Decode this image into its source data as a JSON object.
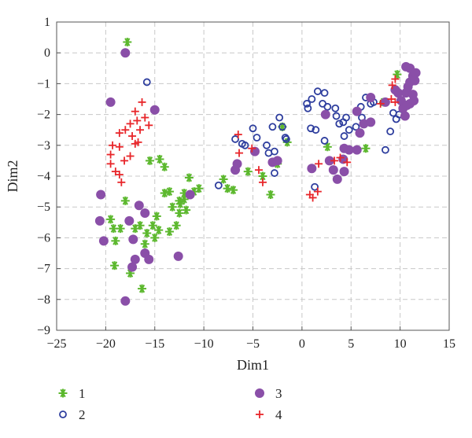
{
  "chart_data": {
    "type": "scatter",
    "title": "",
    "xlabel": "Dim1",
    "ylabel": "Dim2",
    "xlim": [
      -25,
      15
    ],
    "ylim": [
      -9,
      1
    ],
    "xticks": [
      -25,
      -20,
      -15,
      -10,
      -5,
      0,
      5,
      10,
      15
    ],
    "yticks": [
      -9,
      -8,
      -7,
      -6,
      -5,
      -4,
      -3,
      -2,
      -1,
      0,
      1
    ],
    "xtick_labels": [
      "−25",
      "−20",
      "−15",
      "−10",
      "−5",
      "0",
      "5",
      "10",
      "15"
    ],
    "ytick_labels": [
      "−9",
      "−8",
      "−7",
      "−6",
      "−5",
      "−4",
      "−3",
      "−2",
      "−1",
      "0",
      "1"
    ],
    "grid": true,
    "legend_position": "below",
    "series": [
      {
        "name": "1",
        "marker": "asterisk",
        "color": "#5cb82e",
        "points": [
          [
            -17.8,
            0.35
          ],
          [
            -15.5,
            -3.5
          ],
          [
            -14.5,
            -3.45
          ],
          [
            -14.0,
            -3.7
          ],
          [
            -13.5,
            -4.5
          ],
          [
            -12.5,
            -4.8
          ],
          [
            -12.0,
            -4.55
          ],
          [
            -11.5,
            -4.05
          ],
          [
            -11.0,
            -4.5
          ],
          [
            -10.5,
            -4.4
          ],
          [
            -12.0,
            -4.75
          ],
          [
            -12.5,
            -5.2
          ],
          [
            -12.8,
            -5.6
          ],
          [
            -13.2,
            -5.0
          ],
          [
            -14.0,
            -4.55
          ],
          [
            -14.8,
            -5.3
          ],
          [
            -15.2,
            -5.6
          ],
          [
            -14.6,
            -5.75
          ],
          [
            -15.0,
            -6.0
          ],
          [
            -16.0,
            -6.2
          ],
          [
            -16.5,
            -5.6
          ],
          [
            -17.0,
            -5.7
          ],
          [
            -18.0,
            -4.8
          ],
          [
            -18.5,
            -5.7
          ],
          [
            -19.2,
            -5.7
          ],
          [
            -19.5,
            -5.4
          ],
          [
            -19.0,
            -6.1
          ],
          [
            -17.5,
            -7.15
          ],
          [
            -16.3,
            -7.65
          ],
          [
            -19.1,
            -6.9
          ],
          [
            -13.5,
            -5.8
          ],
          [
            -15.8,
            -5.85
          ],
          [
            -12.4,
            -4.9
          ],
          [
            -11.8,
            -5.1
          ],
          [
            -8.0,
            -4.1
          ],
          [
            -7.6,
            -4.4
          ],
          [
            -7.0,
            -4.45
          ],
          [
            -5.5,
            -3.85
          ],
          [
            -4.0,
            -4.0
          ],
          [
            -3.2,
            -4.6
          ],
          [
            -2.5,
            -3.6
          ],
          [
            -1.5,
            -2.9
          ],
          [
            -2.0,
            -2.4
          ],
          [
            2.6,
            -3.05
          ],
          [
            6.5,
            -3.1
          ],
          [
            8.3,
            -1.6
          ],
          [
            9.7,
            -0.7
          ]
        ]
      },
      {
        "name": "2",
        "marker": "circle-open",
        "color": "#2e3e9e",
        "points": [
          [
            -15.8,
            -0.95
          ],
          [
            -6.8,
            -2.8
          ],
          [
            -6.1,
            -2.95
          ],
          [
            -5.8,
            -3.0
          ],
          [
            -5.0,
            -2.45
          ],
          [
            -4.6,
            -2.75
          ],
          [
            -3.6,
            -3.0
          ],
          [
            -3.0,
            -2.4
          ],
          [
            -2.3,
            -2.1
          ],
          [
            -2.0,
            -2.4
          ],
          [
            -1.7,
            -2.75
          ],
          [
            -3.4,
            -3.25
          ],
          [
            -2.8,
            -3.2
          ],
          [
            -1.6,
            -2.8
          ],
          [
            -2.8,
            -3.9
          ],
          [
            -8.5,
            -4.3
          ],
          [
            0.5,
            -1.65
          ],
          [
            0.6,
            -1.8
          ],
          [
            1.0,
            -1.5
          ],
          [
            1.6,
            -1.25
          ],
          [
            2.1,
            -1.65
          ],
          [
            2.3,
            -1.3
          ],
          [
            2.6,
            -1.75
          ],
          [
            3.4,
            -1.8
          ],
          [
            3.5,
            -2.05
          ],
          [
            3.8,
            -2.3
          ],
          [
            4.2,
            -2.25
          ],
          [
            4.5,
            -2.1
          ],
          [
            4.3,
            -2.7
          ],
          [
            4.8,
            -2.5
          ],
          [
            5.5,
            -2.4
          ],
          [
            6.5,
            -1.45
          ],
          [
            6.0,
            -1.75
          ],
          [
            7.0,
            -1.65
          ],
          [
            7.3,
            -1.6
          ],
          [
            8.5,
            -3.15
          ],
          [
            9.0,
            -2.55
          ],
          [
            9.3,
            -1.95
          ],
          [
            9.6,
            -2.15
          ],
          [
            9.9,
            -2.0
          ],
          [
            0.9,
            -2.45
          ],
          [
            1.4,
            -2.5
          ],
          [
            2.3,
            -2.85
          ],
          [
            6.1,
            -2.1
          ],
          [
            1.3,
            -4.35
          ]
        ]
      },
      {
        "name": "3",
        "marker": "circle-filled",
        "color": "#8a4fa8",
        "points": [
          [
            -18.0,
            0.0
          ],
          [
            -19.5,
            -1.6
          ],
          [
            -15.0,
            -1.85
          ],
          [
            -20.5,
            -4.6
          ],
          [
            -20.6,
            -5.45
          ],
          [
            -20.2,
            -6.1
          ],
          [
            -17.6,
            -5.45
          ],
          [
            -16.6,
            -4.95
          ],
          [
            -16.0,
            -6.5
          ],
          [
            -15.6,
            -6.7
          ],
          [
            -17.0,
            -6.7
          ],
          [
            -17.3,
            -6.95
          ],
          [
            -17.2,
            -6.05
          ],
          [
            -16.0,
            -5.2
          ],
          [
            -18.0,
            -8.05
          ],
          [
            -11.4,
            -4.6
          ],
          [
            -12.6,
            -6.6
          ],
          [
            -6.6,
            -3.6
          ],
          [
            -6.8,
            -3.8
          ],
          [
            -4.8,
            -3.2
          ],
          [
            -3.0,
            -3.55
          ],
          [
            -2.5,
            -3.5
          ],
          [
            1.0,
            -3.75
          ],
          [
            2.4,
            -2.0
          ],
          [
            2.8,
            -3.5
          ],
          [
            3.2,
            -3.8
          ],
          [
            3.6,
            -4.1
          ],
          [
            4.2,
            -3.45
          ],
          [
            4.3,
            -3.85
          ],
          [
            4.3,
            -3.1
          ],
          [
            4.8,
            -3.15
          ],
          [
            5.6,
            -3.15
          ],
          [
            5.9,
            -2.6
          ],
          [
            6.3,
            -2.3
          ],
          [
            7.0,
            -2.25
          ],
          [
            7.0,
            -1.45
          ],
          [
            8.5,
            -1.6
          ],
          [
            9.5,
            -1.2
          ],
          [
            9.8,
            -1.3
          ],
          [
            10.1,
            -1.55
          ],
          [
            10.3,
            -1.8
          ],
          [
            10.6,
            -1.3
          ],
          [
            10.8,
            -1.1
          ],
          [
            11.0,
            -0.95
          ],
          [
            11.3,
            -0.75
          ],
          [
            11.0,
            -0.5
          ],
          [
            10.6,
            -0.45
          ],
          [
            11.6,
            -0.65
          ],
          [
            11.5,
            -0.9
          ],
          [
            11.3,
            -1.35
          ],
          [
            11.0,
            -1.65
          ],
          [
            10.5,
            -2.05
          ],
          [
            10.7,
            -1.7
          ],
          [
            11.4,
            -1.55
          ],
          [
            5.6,
            -1.9
          ]
        ]
      },
      {
        "name": "4",
        "marker": "plus",
        "color": "#e8262a",
        "points": [
          [
            -16.3,
            -1.6
          ],
          [
            -17.0,
            -1.9
          ],
          [
            -16.0,
            -2.1
          ],
          [
            -16.8,
            -2.2
          ],
          [
            -17.5,
            -2.3
          ],
          [
            -18.0,
            -2.5
          ],
          [
            -16.5,
            -2.5
          ],
          [
            -15.6,
            -2.35
          ],
          [
            -17.3,
            -2.7
          ],
          [
            -17.0,
            -2.95
          ],
          [
            -16.7,
            -2.9
          ],
          [
            -18.6,
            -2.6
          ],
          [
            -19.3,
            -3.0
          ],
          [
            -18.6,
            -3.05
          ],
          [
            -19.5,
            -3.3
          ],
          [
            -18.1,
            -3.5
          ],
          [
            -17.5,
            -3.35
          ],
          [
            -19.5,
            -3.6
          ],
          [
            -19.0,
            -3.85
          ],
          [
            -18.6,
            -3.95
          ],
          [
            -18.4,
            -4.2
          ],
          [
            -6.5,
            -2.65
          ],
          [
            -6.4,
            -3.25
          ],
          [
            -5.1,
            -3.1
          ],
          [
            -4.4,
            -3.8
          ],
          [
            -4.0,
            -4.2
          ],
          [
            0.8,
            -4.6
          ],
          [
            1.1,
            -4.7
          ],
          [
            1.6,
            -4.5
          ],
          [
            1.7,
            -3.6
          ],
          [
            3.3,
            -3.5
          ],
          [
            3.9,
            -3.4
          ],
          [
            4.6,
            -3.55
          ],
          [
            9.1,
            -1.5
          ],
          [
            9.5,
            -1.6
          ],
          [
            9.2,
            -1.05
          ],
          [
            9.5,
            -0.85
          ],
          [
            8.0,
            -1.65
          ]
        ]
      }
    ]
  },
  "legend": {
    "items": [
      {
        "label": "1"
      },
      {
        "label": "2"
      },
      {
        "label": "3"
      },
      {
        "label": "4"
      }
    ]
  }
}
